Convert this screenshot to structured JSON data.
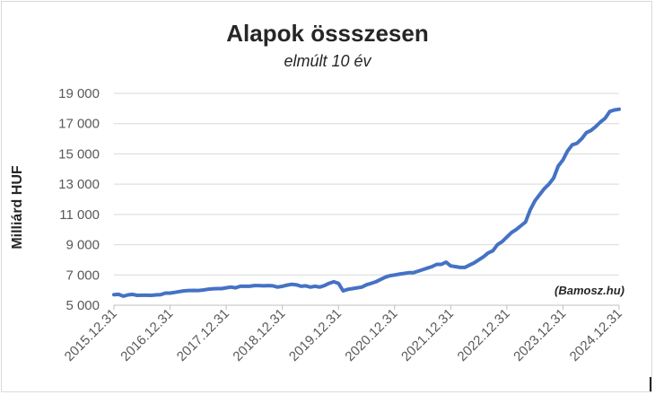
{
  "chart_data": {
    "type": "line",
    "title": "Alapok össszesen",
    "subtitle": "elmúlt 10 év",
    "xlabel": "",
    "ylabel": "Milliárd HUF",
    "annotation": "(Bamosz.hu)",
    "ylim": [
      5000,
      19000
    ],
    "yticks": [
      "5 000",
      "7 000",
      "9 000",
      "11 000",
      "13 000",
      "15 000",
      "17 000",
      "19 000"
    ],
    "ytick_values": [
      5000,
      7000,
      9000,
      11000,
      13000,
      15000,
      17000,
      19000
    ],
    "xticks": [
      "2015.12.31",
      "2016.12.31",
      "2017.12.31",
      "2018.12.31",
      "2019.12.31",
      "2020.12.31",
      "2021.12.31",
      "2022.12.31",
      "2023.12.31",
      "2024.12.31"
    ],
    "xlim": [
      2015.917,
      2024.917
    ],
    "grid": true,
    "line_color": "#4472c4",
    "series": [
      {
        "x": [
          2015.917,
          2016.0,
          2016.083,
          2016.167,
          2016.25,
          2016.333,
          2016.417,
          2016.5,
          2016.583,
          2016.667,
          2016.75,
          2016.833,
          2016.917,
          2017.0,
          2017.083,
          2017.167,
          2017.25,
          2017.333,
          2017.417,
          2017.5,
          2017.583,
          2017.667,
          2017.75,
          2017.833,
          2017.917,
          2018.0,
          2018.083,
          2018.167,
          2018.25,
          2018.333,
          2018.417,
          2018.5,
          2018.583,
          2018.667,
          2018.75,
          2018.833,
          2018.917,
          2019.0,
          2019.083,
          2019.167,
          2019.25,
          2019.333,
          2019.417,
          2019.5,
          2019.583,
          2019.667,
          2019.75,
          2019.833,
          2019.917,
          2020.0,
          2020.083,
          2020.167,
          2020.25,
          2020.333,
          2020.417,
          2020.5,
          2020.583,
          2020.667,
          2020.75,
          2020.833,
          2020.917,
          2021.0,
          2021.083,
          2021.167,
          2021.25,
          2021.333,
          2021.417,
          2021.5,
          2021.583,
          2021.667,
          2021.75,
          2021.833,
          2021.917,
          2022.0,
          2022.083,
          2022.167,
          2022.25,
          2022.333,
          2022.417,
          2022.5,
          2022.583,
          2022.667,
          2022.75,
          2022.833,
          2022.917,
          2023.0,
          2023.083,
          2023.167,
          2023.25,
          2023.333,
          2023.417,
          2023.5,
          2023.583,
          2023.667,
          2023.75,
          2023.833,
          2023.917,
          2024.0,
          2024.083,
          2024.167,
          2024.25,
          2024.333,
          2024.417,
          2024.5,
          2024.583,
          2024.667,
          2024.75,
          2024.833,
          2024.917
        ],
        "y": [
          5700,
          5720,
          5600,
          5680,
          5720,
          5650,
          5660,
          5660,
          5650,
          5680,
          5700,
          5800,
          5800,
          5850,
          5900,
          5950,
          5970,
          5980,
          5970,
          6000,
          6050,
          6080,
          6100,
          6100,
          6150,
          6200,
          6150,
          6250,
          6250,
          6250,
          6300,
          6300,
          6280,
          6300,
          6280,
          6200,
          6250,
          6330,
          6380,
          6350,
          6250,
          6280,
          6200,
          6250,
          6200,
          6300,
          6450,
          6550,
          6450,
          5950,
          6050,
          6100,
          6150,
          6200,
          6350,
          6450,
          6550,
          6700,
          6850,
          6950,
          7000,
          7050,
          7100,
          7150,
          7150,
          7250,
          7350,
          7450,
          7550,
          7700,
          7700,
          7850,
          7600,
          7550,
          7500,
          7500,
          7650,
          7800,
          8000,
          8200,
          8450,
          8600,
          9000,
          9200,
          9500,
          9800,
          10000,
          10250,
          10500,
          11300,
          11900,
          12300,
          12700,
          13000,
          13400,
          14200,
          14600,
          15200,
          15600,
          15700,
          16000,
          16400,
          16550,
          16800,
          17100,
          17350,
          17800,
          17900,
          17950
        ]
      }
    ]
  }
}
